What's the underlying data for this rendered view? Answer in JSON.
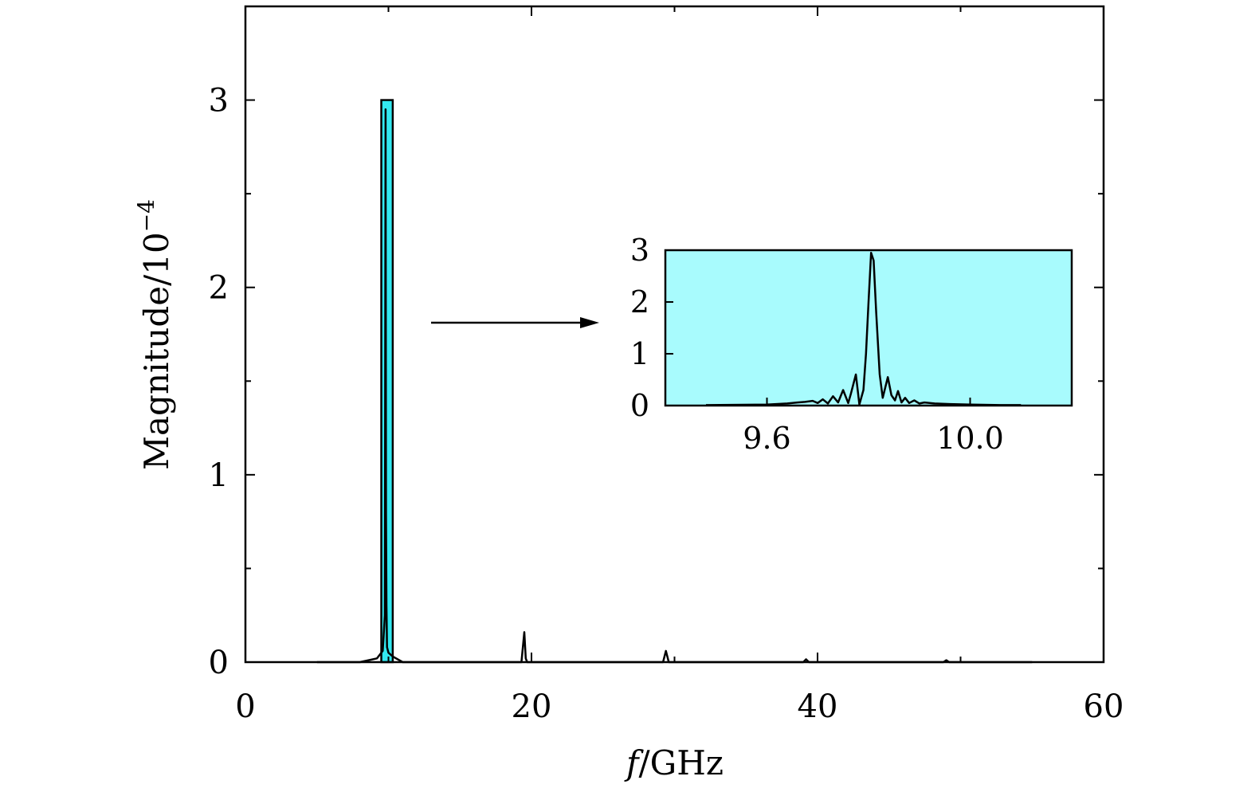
{
  "chart_data": [
    {
      "type": "line",
      "title": "",
      "xlabel": "f/GHz",
      "xlabel_italic_part": "f",
      "xlabel_rest": "/GHz",
      "ylabel": "Magnitude/10",
      "ylabel_exponent": "−4",
      "xlim": [
        0,
        60
      ],
      "ylim": [
        0,
        3.5
      ],
      "xticks": [
        0,
        20,
        40,
        60
      ],
      "xtick_labels": [
        "0",
        "20",
        "40",
        "60"
      ],
      "yticks": [
        0,
        1,
        2,
        3
      ],
      "ytick_labels": [
        "0",
        "1",
        "2",
        "3"
      ],
      "grid": false,
      "highlight_region": {
        "x_range": [
          9.5,
          10.3
        ],
        "y_range": [
          0,
          3.0
        ],
        "color": "#33e8f0"
      },
      "series": [
        {
          "x": [
            5.0,
            8.0,
            9.2,
            9.6,
            9.75,
            9.8,
            9.83,
            9.86,
            9.9,
            10.0,
            10.3,
            11.0,
            16.0,
            19.3,
            19.5,
            19.6,
            19.7,
            20.0,
            25.0,
            29.2,
            29.4,
            29.6,
            30.0,
            39.0,
            39.2,
            39.4,
            48.8,
            49.0,
            49.2,
            55.0
          ],
          "y": [
            0.0,
            0.0,
            0.02,
            0.06,
            0.25,
            2.95,
            0.8,
            0.3,
            0.08,
            0.05,
            0.03,
            0.0,
            0.0,
            0.0,
            0.16,
            0.02,
            0.0,
            0.0,
            0.0,
            0.0,
            0.06,
            0.0,
            0.0,
            0.0,
            0.015,
            0.0,
            0.0,
            0.01,
            0.0,
            0.0
          ]
        }
      ]
    },
    {
      "type": "line",
      "title": "",
      "xlim": [
        9.4,
        10.2
      ],
      "ylim": [
        0,
        3.0
      ],
      "xticks": [
        9.6,
        10.0
      ],
      "xtick_labels": [
        "9.6",
        "10.0"
      ],
      "yticks": [
        0,
        1,
        2,
        3
      ],
      "ytick_labels": [
        "0",
        "1",
        "2",
        "3"
      ],
      "background": "#a8fbfd",
      "grid": false,
      "series": [
        {
          "x": [
            9.48,
            9.6,
            9.64,
            9.66,
            9.675,
            9.69,
            9.7,
            9.71,
            9.72,
            9.73,
            9.74,
            9.75,
            9.76,
            9.765,
            9.775,
            9.782,
            9.79,
            9.795,
            9.8,
            9.805,
            9.81,
            9.815,
            9.822,
            9.828,
            9.833,
            9.838,
            9.845,
            9.852,
            9.858,
            9.865,
            9.872,
            9.88,
            9.89,
            9.9,
            9.91,
            9.93,
            9.96,
            10.0,
            10.06,
            10.1
          ],
          "y": [
            0.01,
            0.02,
            0.04,
            0.06,
            0.07,
            0.09,
            0.05,
            0.12,
            0.04,
            0.18,
            0.06,
            0.3,
            0.05,
            0.22,
            0.6,
            0.02,
            0.3,
            1.0,
            2.0,
            2.95,
            2.8,
            1.8,
            0.6,
            0.15,
            0.35,
            0.55,
            0.2,
            0.1,
            0.28,
            0.06,
            0.15,
            0.05,
            0.1,
            0.04,
            0.06,
            0.04,
            0.03,
            0.02,
            0.01,
            0.01
          ]
        }
      ]
    }
  ]
}
